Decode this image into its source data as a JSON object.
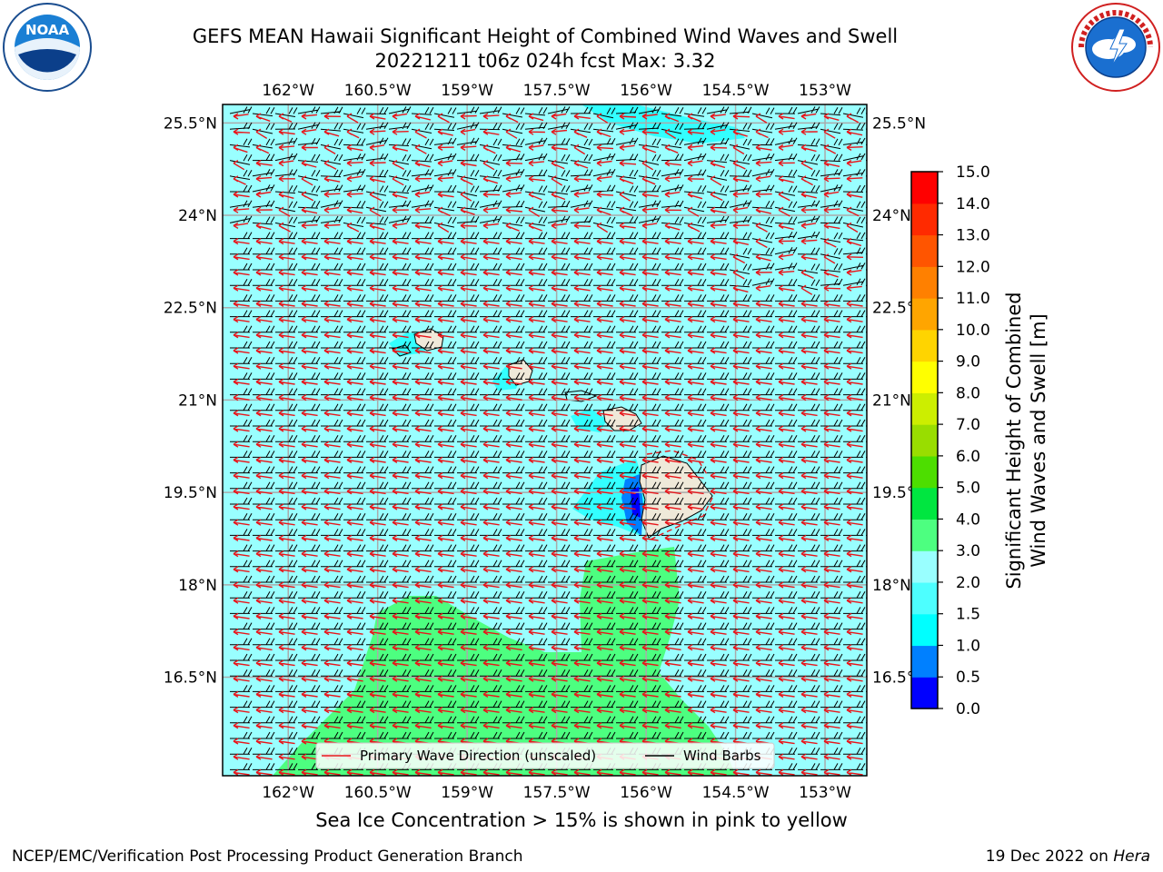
{
  "header": {
    "title_line1": "GEFS MEAN Hawaii Significant Height of Combined Wind Waves and Swell",
    "title_line2": "20221211 t06z 024h fcst   Max: 3.32"
  },
  "logos": {
    "left": {
      "name": "noaa-logo",
      "text": "NOAA"
    },
    "right": {
      "name": "nws-logo",
      "text": "NATIONAL WEATHER SERVICE"
    }
  },
  "map": {
    "region": "Hawaii",
    "lon_range": [
      -163.1,
      -152.3
    ],
    "lat_range": [
      14.9,
      25.8
    ],
    "lon_ticks": [
      {
        "value": -162.0,
        "label": "162°W"
      },
      {
        "value": -160.5,
        "label": "160.5°W"
      },
      {
        "value": -159.0,
        "label": "159°W"
      },
      {
        "value": -157.5,
        "label": "157.5°W"
      },
      {
        "value": -156.0,
        "label": "156°W"
      },
      {
        "value": -154.5,
        "label": "154.5°W"
      },
      {
        "value": -153.0,
        "label": "153°W"
      }
    ],
    "lat_ticks": [
      {
        "value": 25.5,
        "label": "25.5°N"
      },
      {
        "value": 24.0,
        "label": "24°N"
      },
      {
        "value": 22.5,
        "label": "22.5°N"
      },
      {
        "value": 21.0,
        "label": "21°N"
      },
      {
        "value": 19.5,
        "label": "19.5°N"
      },
      {
        "value": 18.0,
        "label": "18°N"
      },
      {
        "value": 16.5,
        "label": "16.5°N"
      }
    ],
    "colors": {
      "background": "#99ffff",
      "high_swell": "#4dff80",
      "low_swell": "#33ffff",
      "island": "#efe9d9",
      "gridline": "#aaaaaa",
      "wave_arrow": "#e8161b",
      "wind_barb": "#000000"
    },
    "legend": {
      "placement": "bottom-center",
      "entries": [
        {
          "label": "Primary Wave Direction (unscaled)",
          "color": "#e8161b"
        },
        {
          "label": "Wind Barbs",
          "color": "#000000"
        }
      ]
    }
  },
  "colorbar": {
    "label_line1": "Significant Height of Combined",
    "label_line2": "Wind Waves and Swell [m]",
    "ticks": [
      "0.0",
      "0.5",
      "1.0",
      "1.5",
      "2.0",
      "3.0",
      "4.0",
      "5.0",
      "6.0",
      "7.0",
      "8.0",
      "9.0",
      "10.0",
      "11.0",
      "12.0",
      "13.0",
      "14.0",
      "15.0"
    ],
    "colors": [
      "#0000ff",
      "#0080ff",
      "#00ffff",
      "#4dffff",
      "#99ffff",
      "#4dff80",
      "#00e640",
      "#4dde00",
      "#99dd00",
      "#ccee00",
      "#ffff00",
      "#ffd400",
      "#ffa500",
      "#ff8000",
      "#ff5500",
      "#ff2a00",
      "#ff0000"
    ]
  },
  "caption": "Sea Ice Concentration > 15% is shown in pink to yellow",
  "footer": {
    "left": "NCEP/EMC/Verification Post Processing Product Generation Branch",
    "right_prefix": "19 Dec 2022 on ",
    "right_host": "Hera"
  }
}
